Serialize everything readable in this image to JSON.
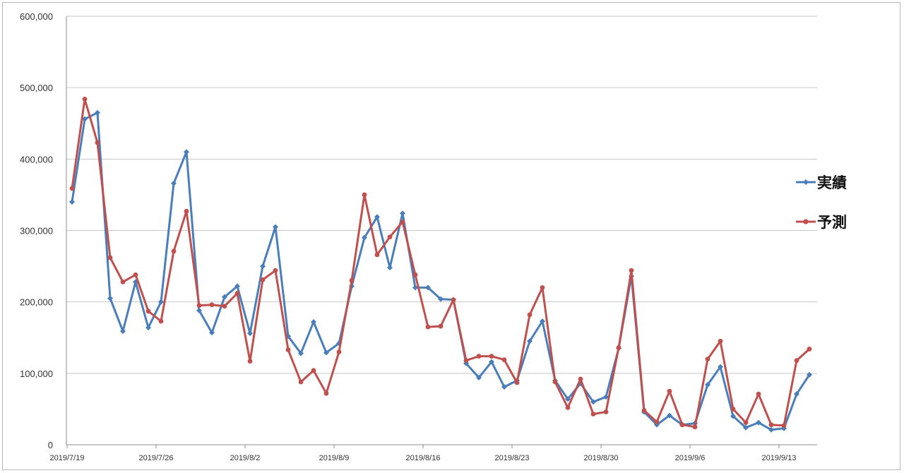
{
  "chart_data": {
    "type": "line",
    "x_tick_labels": [
      "2019/7/19",
      "2019/7/26",
      "2019/8/2",
      "2019/8/9",
      "2019/8/16",
      "2019/8/23",
      "2019/8/30",
      "2019/9/6",
      "2019/9/13"
    ],
    "y_tick_labels": [
      "0",
      "100,000",
      "200,000",
      "300,000",
      "400,000",
      "500,000",
      "600,000"
    ],
    "ylim": [
      0,
      600000
    ],
    "grid": true,
    "legend_position": "right",
    "series": [
      {
        "name": "実績",
        "color": "#4a7ebb",
        "values": [
          340000,
          456000,
          465000,
          205000,
          159000,
          228000,
          164000,
          200000,
          366000,
          410000,
          188000,
          157000,
          207000,
          222000,
          156000,
          250000,
          305000,
          152000,
          128000,
          172000,
          129000,
          142000,
          222000,
          290000,
          319000,
          248000,
          324000,
          220000,
          220000,
          204000,
          203000,
          114000,
          94000,
          116000,
          81000,
          90000,
          145000,
          173000,
          90000,
          64000,
          86000,
          60000,
          67000,
          135000,
          236000,
          46000,
          28000,
          41000,
          28000,
          30000,
          84000,
          109000,
          40000,
          24000,
          31000,
          21000,
          23000,
          71000,
          98000
        ]
      },
      {
        "name": "予測",
        "color": "#c0504d",
        "values": [
          359000,
          484000,
          423000,
          262000,
          228000,
          238000,
          187000,
          173000,
          271000,
          327000,
          195000,
          196000,
          194000,
          212000,
          117000,
          231000,
          244000,
          133000,
          88000,
          104000,
          72000,
          130000,
          230000,
          350000,
          266000,
          291000,
          312000,
          238000,
          165000,
          166000,
          203000,
          118000,
          124000,
          124000,
          119000,
          87000,
          182000,
          220000,
          88000,
          52000,
          92000,
          43000,
          46000,
          136000,
          244000,
          48000,
          32000,
          75000,
          28000,
          25000,
          120000,
          145000,
          50000,
          31000,
          71000,
          28000,
          27000,
          118000,
          134000
        ]
      }
    ]
  }
}
